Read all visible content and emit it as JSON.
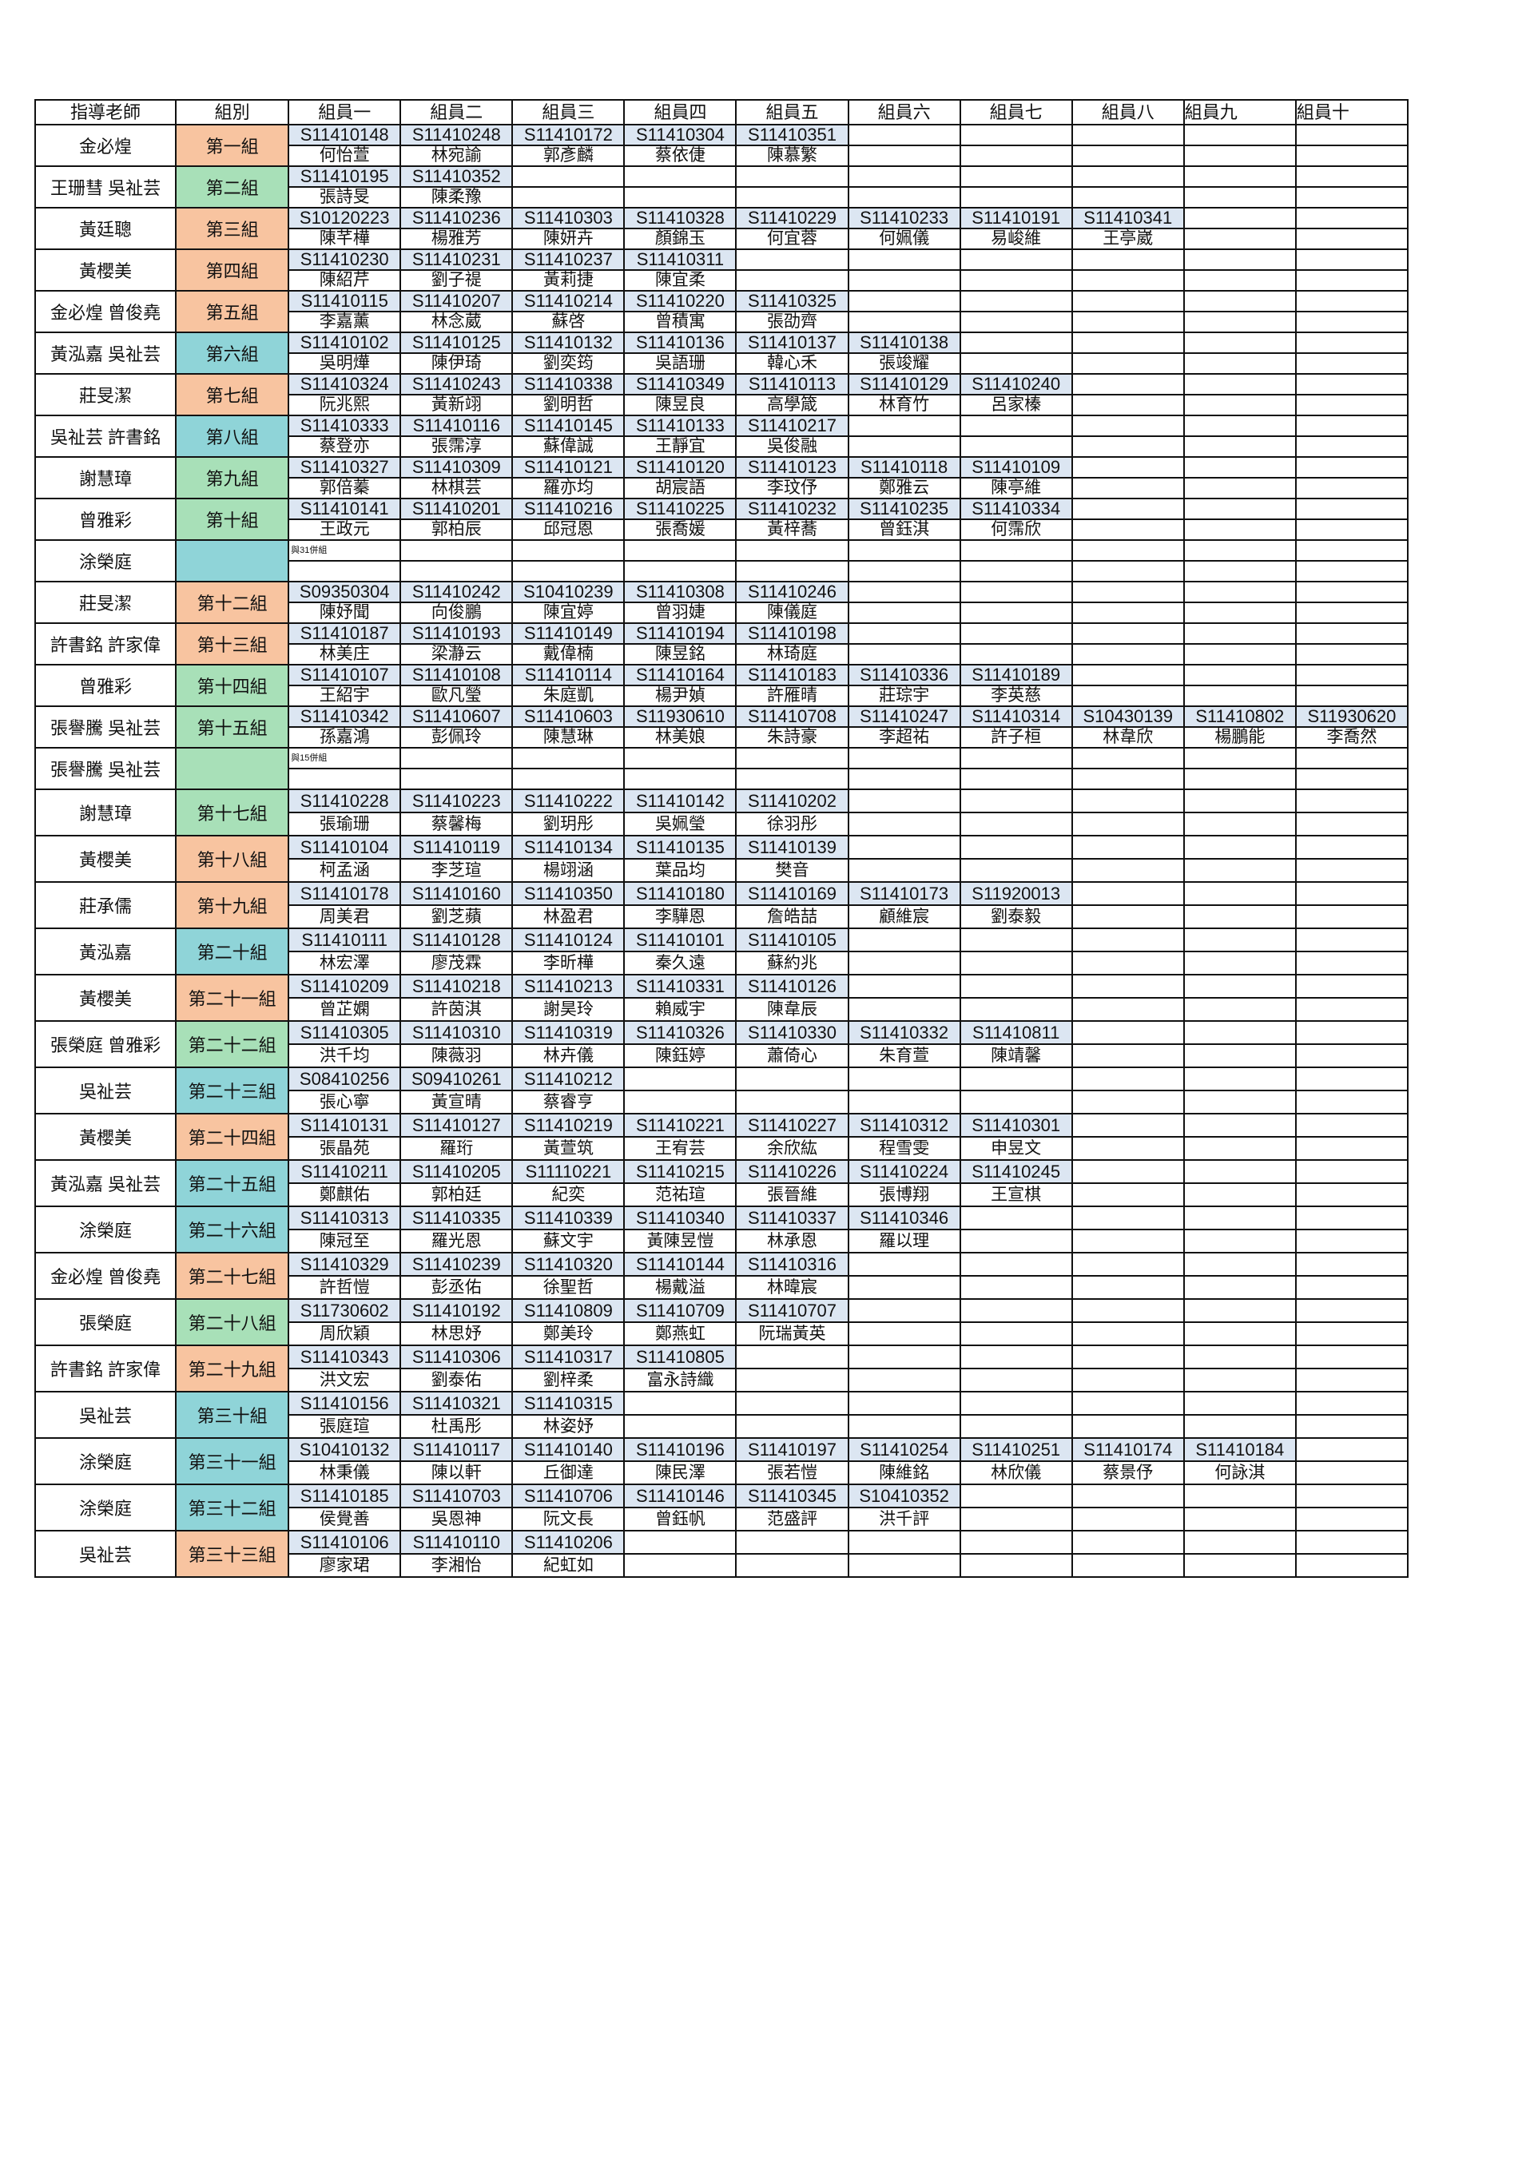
{
  "colors": {
    "orange": "#f8c4a0",
    "green": "#a8e0b8",
    "cyan": "#8fd4d8",
    "id_bg": "#dce6f2"
  },
  "headers": [
    "指導老師",
    "組別",
    "組員一",
    "組員二",
    "組員三",
    "組員四",
    "組員五",
    "組員六",
    "組員七",
    "組員八",
    "組員九",
    "組員十"
  ],
  "groups": [
    {
      "teacher": "金必煌",
      "label": "第一組",
      "color": "orange",
      "members": [
        [
          "S11410148",
          "何怡萱"
        ],
        [
          "S11410248",
          "林宛諭"
        ],
        [
          "S11410172",
          "郭彥麟"
        ],
        [
          "S11410304",
          "蔡依倢"
        ],
        [
          "S11410351",
          "陳慕繁"
        ]
      ]
    },
    {
      "teacher": "王珊彗 吳祉芸",
      "label": "第二組",
      "color": "green",
      "members": [
        [
          "S11410195",
          "張詩旻"
        ],
        [
          "S11410352",
          "陳柔豫"
        ]
      ]
    },
    {
      "teacher": "黃廷聰",
      "label": "第三組",
      "color": "orange",
      "members": [
        [
          "S10120223",
          "陳芊樺"
        ],
        [
          "S11410236",
          "楊雅芳"
        ],
        [
          "S11410303",
          "陳妍卉"
        ],
        [
          "S11410328",
          "顏錦玉"
        ],
        [
          "S11410229",
          "何宜蓉"
        ],
        [
          "S11410233",
          "何姵儀"
        ],
        [
          "S11410191",
          "易峻維"
        ],
        [
          "S11410341",
          "王亭崴"
        ]
      ]
    },
    {
      "teacher": "黃櫻美",
      "label": "第四組",
      "color": "orange",
      "members": [
        [
          "S11410230",
          "陳紹芹"
        ],
        [
          "S11410231",
          "劉子禔"
        ],
        [
          "S11410237",
          "黃莉捷"
        ],
        [
          "S11410311",
          "陳宜柔"
        ]
      ]
    },
    {
      "teacher": "金必煌 曾俊堯",
      "label": "第五組",
      "color": "orange",
      "members": [
        [
          "S11410115",
          "李嘉薰"
        ],
        [
          "S11410207",
          "林念葳"
        ],
        [
          "S11410214",
          "蘇啓"
        ],
        [
          "S11410220",
          "曾積寓"
        ],
        [
          "S11410325",
          "張劭齊"
        ]
      ]
    },
    {
      "teacher": "黃泓嘉 吳祉芸",
      "label": "第六組",
      "color": "cyan",
      "members": [
        [
          "S11410102",
          "吳明燁"
        ],
        [
          "S11410125",
          "陳伊琦"
        ],
        [
          "S11410132",
          "劉奕筠"
        ],
        [
          "S11410136",
          "吳語珊"
        ],
        [
          "S11410137",
          "韓心禾"
        ],
        [
          "S11410138",
          "張竣耀"
        ]
      ]
    },
    {
      "teacher": "莊旻潔",
      "label": "第七組",
      "color": "orange",
      "members": [
        [
          "S11410324",
          "阮兆熙"
        ],
        [
          "S11410243",
          "黃新翊"
        ],
        [
          "S11410338",
          "劉明哲"
        ],
        [
          "S11410349",
          "陳昱良"
        ],
        [
          "S11410113",
          "高學箴"
        ],
        [
          "S11410129",
          "林育竹"
        ],
        [
          "S11410240",
          "呂家榛"
        ]
      ]
    },
    {
      "teacher": "吳祉芸 許書銘",
      "label": "第八組",
      "color": "cyan",
      "members": [
        [
          "S11410333",
          "蔡登亦"
        ],
        [
          "S11410116",
          "張霈淳"
        ],
        [
          "S11410145",
          "蘇偉誠"
        ],
        [
          "S11410133",
          "王靜宜"
        ],
        [
          "S11410217",
          "吳俊融"
        ]
      ]
    },
    {
      "teacher": "謝慧璋",
      "label": "第九組",
      "color": "green",
      "members": [
        [
          "S11410327",
          "郭倍蓁"
        ],
        [
          "S11410309",
          "林棋芸"
        ],
        [
          "S11410121",
          "羅亦均"
        ],
        [
          "S11410120",
          "胡宸語"
        ],
        [
          "S11410123",
          "李玟伃"
        ],
        [
          "S11410118",
          "鄭雅云"
        ],
        [
          "S11410109",
          "陳亭維"
        ]
      ]
    },
    {
      "teacher": "曾雅彩",
      "label": "第十組",
      "color": "green",
      "members": [
        [
          "S11410141",
          "王政元"
        ],
        [
          "S11410201",
          "郭柏辰"
        ],
        [
          "S11410216",
          "邱冠恩"
        ],
        [
          "S11410225",
          "張喬媛"
        ],
        [
          "S11410232",
          "黃梓蕎"
        ],
        [
          "S11410235",
          "曾鈺淇"
        ],
        [
          "S11410334",
          "何霈欣"
        ]
      ]
    },
    {
      "teacher": "涂榮庭",
      "label": "",
      "color": "cyan",
      "note": "與31併組",
      "members": []
    },
    {
      "teacher": "莊旻潔",
      "label": "第十二組",
      "color": "orange",
      "members": [
        [
          "S09350304",
          "陳妤聞"
        ],
        [
          "S11410242",
          "向俊鵬"
        ],
        [
          "S10410239",
          "陳宜婷"
        ],
        [
          "S11410308",
          "曾羽婕"
        ],
        [
          "S11410246",
          "陳儀庭"
        ]
      ]
    },
    {
      "teacher": "許書銘 許家偉",
      "label": "第十三組",
      "color": "orange",
      "members": [
        [
          "S11410187",
          "林美庄"
        ],
        [
          "S11410193",
          "梁瀞云"
        ],
        [
          "S11410149",
          "戴偉楠"
        ],
        [
          "S11410194",
          "陳昱銘"
        ],
        [
          "S11410198",
          "林琦庭"
        ]
      ]
    },
    {
      "teacher": "曾雅彩",
      "label": "第十四組",
      "color": "green",
      "members": [
        [
          "S11410107",
          "王紹宇"
        ],
        [
          "S11410108",
          "歐凡瑩"
        ],
        [
          "S11410114",
          "朱庭凱"
        ],
        [
          "S11410164",
          "楊尹媜"
        ],
        [
          "S11410183",
          "許雁晴"
        ],
        [
          "S11410336",
          "莊琮宇"
        ],
        [
          "S11410189",
          "李英慈"
        ]
      ]
    },
    {
      "teacher": "張譽騰 吳祉芸",
      "label": "第十五組",
      "color": "green",
      "members": [
        [
          "S11410342",
          "孫嘉鴻"
        ],
        [
          "S11410607",
          "彭佩玲"
        ],
        [
          "S11410603",
          "陳慧琳"
        ],
        [
          "S11930610",
          "林美娘"
        ],
        [
          "S11410708",
          "朱詩豪"
        ],
        [
          "S11410247",
          "李超祐"
        ],
        [
          "S11410314",
          "許子桓"
        ],
        [
          "S10430139",
          "林韋欣"
        ],
        [
          "S11410802",
          "楊鵬能"
        ],
        [
          "S11930620",
          "李喬然"
        ]
      ]
    },
    {
      "teacher": "張譽騰 吳祉芸",
      "label": "",
      "color": "green",
      "note": "與15併組",
      "members": []
    },
    {
      "teacher": "謝慧璋",
      "label": "第十七組",
      "color": "green",
      "members": [
        [
          "S11410228",
          "張瑜珊"
        ],
        [
          "S11410223",
          "蔡馨梅"
        ],
        [
          "S11410222",
          "劉玥彤"
        ],
        [
          "S11410142",
          "吳姵瑩"
        ],
        [
          "S11410202",
          "徐羽彤"
        ]
      ]
    },
    {
      "teacher": "黃櫻美",
      "label": "第十八組",
      "color": "orange",
      "members": [
        [
          "S11410104",
          "柯孟涵"
        ],
        [
          "S11410119",
          "李芝瑄"
        ],
        [
          "S11410134",
          "楊翊涵"
        ],
        [
          "S11410135",
          "葉品均"
        ],
        [
          "S11410139",
          "樊音"
        ]
      ]
    },
    {
      "teacher": "莊承儒",
      "label": "第十九組",
      "color": "orange",
      "members": [
        [
          "S11410178",
          "周美君"
        ],
        [
          "S11410160",
          "劉芝蘋"
        ],
        [
          "S11410350",
          "林盈君"
        ],
        [
          "S11410180",
          "李驊恩"
        ],
        [
          "S11410169",
          "詹皓喆"
        ],
        [
          "S11410173",
          "顧維宸"
        ],
        [
          "S11920013",
          "劉泰毅"
        ]
      ]
    },
    {
      "teacher": "黃泓嘉",
      "label": "第二十組",
      "color": "cyan",
      "members": [
        [
          "S11410111",
          "林宏澤"
        ],
        [
          "S11410128",
          "廖茂霖"
        ],
        [
          "S11410124",
          "李昕樺"
        ],
        [
          "S11410101",
          "秦久遠"
        ],
        [
          "S11410105",
          "蘇約兆"
        ]
      ]
    },
    {
      "teacher": "黃櫻美",
      "label": "第二十一組",
      "color": "orange",
      "members": [
        [
          "S11410209",
          "曾芷嫻"
        ],
        [
          "S11410218",
          "許茵淇"
        ],
        [
          "S11410213",
          "謝昊玲"
        ],
        [
          "S11410331",
          "賴威宇"
        ],
        [
          "S11410126",
          "陳韋辰"
        ]
      ]
    },
    {
      "teacher": "張榮庭 曾雅彩",
      "label": "第二十二組",
      "color": "green",
      "members": [
        [
          "S11410305",
          "洪千均"
        ],
        [
          "S11410310",
          "陳薇羽"
        ],
        [
          "S11410319",
          "林卉儀"
        ],
        [
          "S11410326",
          "陳鈺婷"
        ],
        [
          "S11410330",
          "蕭倚心"
        ],
        [
          "S11410332",
          "朱育萱"
        ],
        [
          "S11410811",
          "陳靖馨"
        ]
      ]
    },
    {
      "teacher": "吳祉芸",
      "label": "第二十三組",
      "color": "cyan",
      "members": [
        [
          "S08410256",
          "張心寧"
        ],
        [
          "S09410261",
          "黃宣晴"
        ],
        [
          "S11410212",
          "蔡睿亨"
        ]
      ]
    },
    {
      "teacher": "黃櫻美",
      "label": "第二十四組",
      "color": "orange",
      "members": [
        [
          "S11410131",
          "張晶苑"
        ],
        [
          "S11410127",
          "羅珩"
        ],
        [
          "S11410219",
          "黃萱筑"
        ],
        [
          "S11410221",
          "王宥芸"
        ],
        [
          "S11410227",
          "余欣紘"
        ],
        [
          "S11410312",
          "程雪雯"
        ],
        [
          "S11410301",
          "申昱文"
        ]
      ]
    },
    {
      "teacher": "黃泓嘉 吳祉芸",
      "label": "第二十五組",
      "color": "cyan",
      "members": [
        [
          "S11410211",
          "鄭麒佑"
        ],
        [
          "S11410205",
          "郭柏廷"
        ],
        [
          "S11110221",
          "紀奕"
        ],
        [
          "S11410215",
          "范祐瑄"
        ],
        [
          "S11410226",
          "張晉維"
        ],
        [
          "S11410224",
          "張博翔"
        ],
        [
          "S11410245",
          "王宣棋"
        ]
      ]
    },
    {
      "teacher": "涂榮庭",
      "label": "第二十六組",
      "color": "cyan",
      "members": [
        [
          "S11410313",
          "陳冠至"
        ],
        [
          "S11410335",
          "羅光恩"
        ],
        [
          "S11410339",
          "蘇文宇"
        ],
        [
          "S11410340",
          "黃陳昱愷"
        ],
        [
          "S11410337",
          "林承恩"
        ],
        [
          "S11410346",
          "羅以理"
        ]
      ]
    },
    {
      "teacher": "金必煌 曾俊堯",
      "label": "第二十七組",
      "color": "orange",
      "members": [
        [
          "S11410329",
          "許哲愷"
        ],
        [
          "S11410239",
          "彭丞佑"
        ],
        [
          "S11410320",
          "徐聖哲"
        ],
        [
          "S11410144",
          "楊戴溢"
        ],
        [
          "S11410316",
          "林暐宸"
        ]
      ]
    },
    {
      "teacher": "張榮庭",
      "label": "第二十八組",
      "color": "green",
      "members": [
        [
          "S11730602",
          "周欣穎"
        ],
        [
          "S11410192",
          "林思妤"
        ],
        [
          "S11410809",
          "鄭美玲"
        ],
        [
          "S11410709",
          "鄭燕虹"
        ],
        [
          "S11410707",
          "阮瑞黃英"
        ]
      ]
    },
    {
      "teacher": "許書銘 許家偉",
      "label": "第二十九組",
      "color": "orange",
      "members": [
        [
          "S11410343",
          "洪文宏"
        ],
        [
          "S11410306",
          "劉泰佑"
        ],
        [
          "S11410317",
          "劉梓柔"
        ],
        [
          "S11410805",
          "富永詩織"
        ]
      ]
    },
    {
      "teacher": "吳祉芸",
      "label": "第三十組",
      "color": "cyan",
      "members": [
        [
          "S11410156",
          "張庭瑄"
        ],
        [
          "S11410321",
          "杜禹彤"
        ],
        [
          "S11410315",
          "林姿妤"
        ]
      ]
    },
    {
      "teacher": "涂榮庭",
      "label": "第三十一組",
      "color": "cyan",
      "members": [
        [
          "S10410132",
          "林秉儀"
        ],
        [
          "S11410117",
          "陳以軒"
        ],
        [
          "S11410140",
          "丘御達"
        ],
        [
          "S11410196",
          "陳民澤"
        ],
        [
          "S11410197",
          "張若愷"
        ],
        [
          "S11410254",
          "陳維銘"
        ],
        [
          "S11410251",
          "林欣儀"
        ],
        [
          "S11410174",
          "蔡景伃"
        ],
        [
          "S11410184",
          "何詠淇"
        ]
      ]
    },
    {
      "teacher": "涂榮庭",
      "label": "第三十二組",
      "color": "cyan",
      "members": [
        [
          "S11410185",
          "侯覺善"
        ],
        [
          "S11410703",
          "吳恩神"
        ],
        [
          "S11410706",
          "阮文長"
        ],
        [
          "S11410146",
          "曾鈺帆"
        ],
        [
          "S11410345",
          "范盛評"
        ],
        [
          "S10410352",
          "洪千評"
        ]
      ]
    },
    {
      "teacher": "吳祉芸",
      "label": "第三十三組",
      "color": "orange",
      "members": [
        [
          "S11410106",
          "廖家珺"
        ],
        [
          "S11410110",
          "李湘怡"
        ],
        [
          "S11410206",
          "紀虹如"
        ]
      ]
    }
  ]
}
